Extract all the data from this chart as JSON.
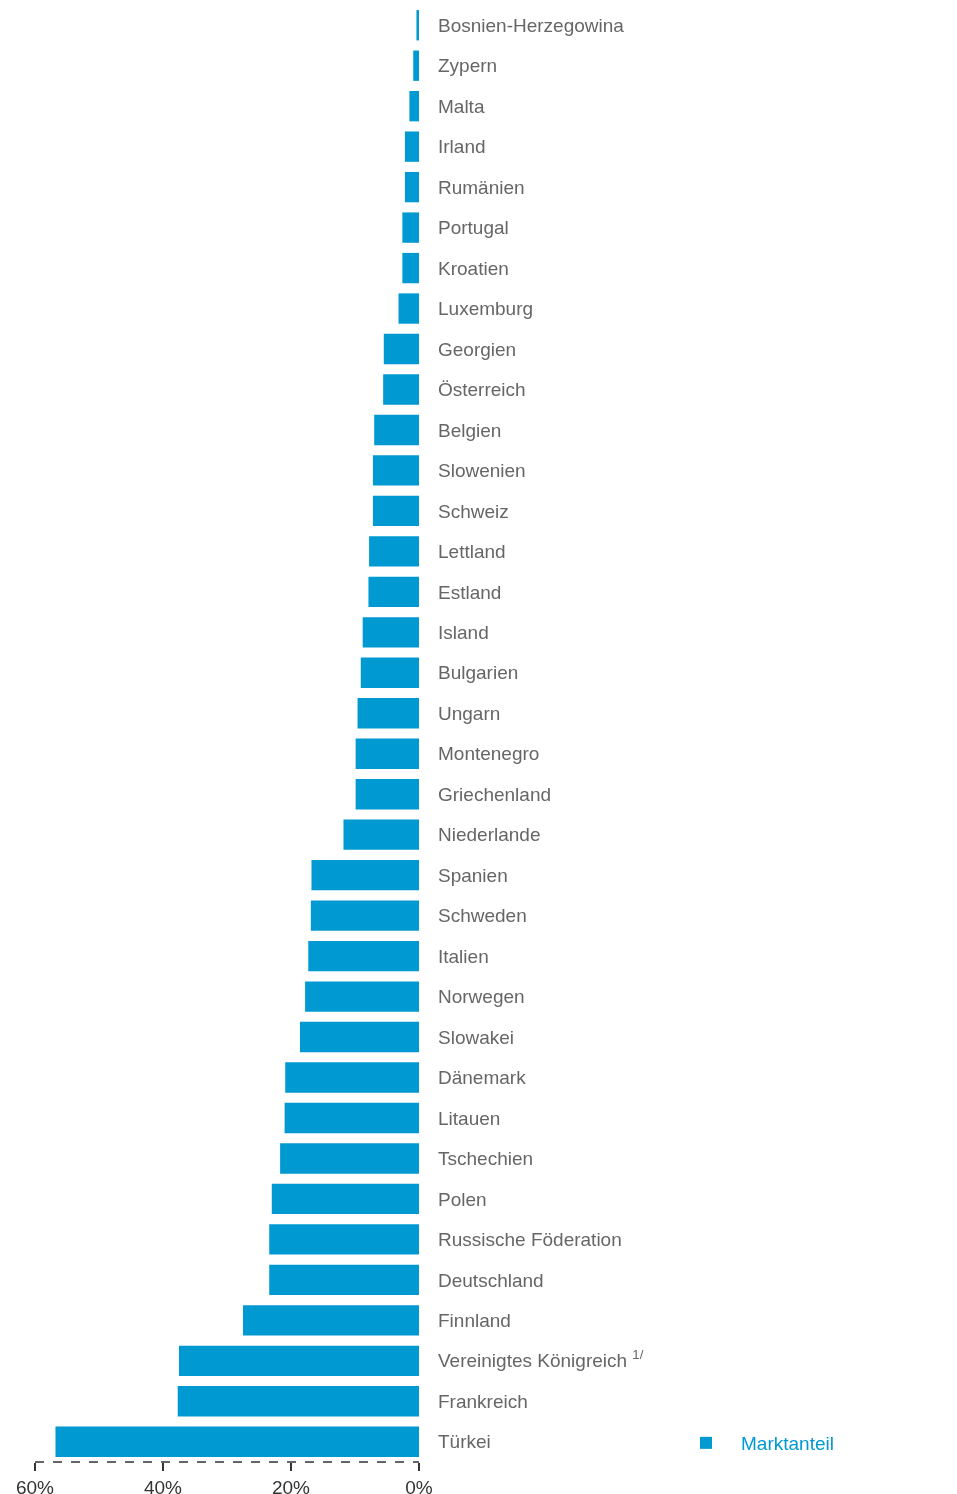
{
  "chart_data": {
    "type": "bar",
    "orientation": "horizontal",
    "categories": [
      "Bosnien-Herzegowina",
      "Zypern",
      "Malta",
      "Irland",
      "Rumänien",
      "Portugal",
      "Kroatien",
      "Luxemburg",
      "Georgien",
      "Österreich",
      "Belgien",
      "Slowenien",
      "Schweiz",
      "Lettland",
      "Estland",
      "Island",
      "Bulgarien",
      "Ungarn",
      "Montenegro",
      "Griechenland",
      "Niederlande",
      "Spanien",
      "Schweden",
      "Italien",
      "Norwegen",
      "Slowakei",
      "Dänemark",
      "Litauen",
      "Tschechien",
      "Polen",
      "Russische Föderation",
      "Deutschland",
      "Finnland",
      "Vereinigtes Königreich $^{1/}$",
      "Frankreich",
      "Türkei"
    ],
    "series": [
      {
        "name": "Marktanteil",
        "color": "#0099d1",
        "values": [
          0.4,
          0.9,
          1.5,
          2.2,
          2.2,
          2.6,
          2.6,
          3.2,
          5.5,
          5.6,
          7.0,
          7.2,
          7.2,
          7.8,
          7.9,
          8.8,
          9.1,
          9.6,
          9.9,
          9.9,
          11.8,
          16.8,
          16.9,
          17.3,
          17.8,
          18.6,
          20.9,
          21.0,
          21.7,
          23.0,
          23.4,
          23.4,
          27.5,
          37.5,
          37.7,
          56.8
        ]
      }
    ],
    "xlim": [
      60,
      0
    ],
    "xticks": [
      {
        "value": 60,
        "label": "60%"
      },
      {
        "value": 40,
        "label": "40%"
      },
      {
        "value": 20,
        "label": "20%"
      },
      {
        "value": 0,
        "label": "0%"
      }
    ],
    "grid": false,
    "legend": "bottom right"
  }
}
